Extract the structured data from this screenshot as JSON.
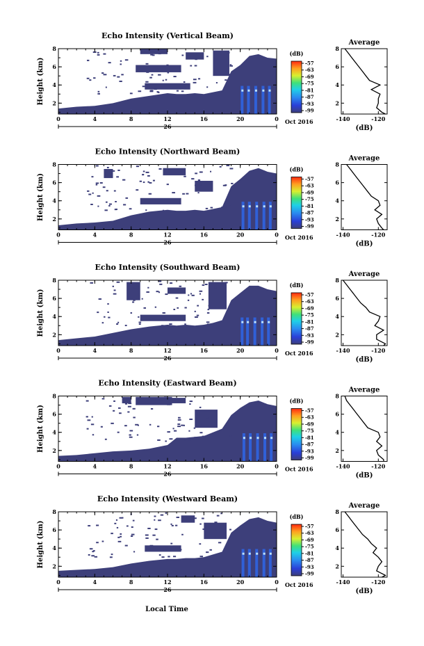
{
  "figure": {
    "xlabel": "Local Time",
    "colors": {
      "echo": "#3d3f7a",
      "echo_strong": "#2e66e8",
      "echo_peak": "#bde2ff",
      "average_line": "#000000"
    }
  },
  "chart_data": [
    {
      "type": "heatmap",
      "title": "Echo Intensity (Vertical Beam)",
      "ylabel": "Height (km)",
      "x_ticks": [
        "0",
        "4",
        "8",
        "12",
        "16",
        "20",
        "0"
      ],
      "y_ticks": [
        "2",
        "4",
        "6",
        "8"
      ],
      "date_day": "26",
      "date_suffix": "Oct 2016",
      "xlim": [
        0,
        24
      ],
      "ylim": [
        0.8,
        8
      ],
      "colorbar": {
        "unit": "(dB)",
        "ticks": [
          "-57",
          "-63",
          "-69",
          "-75",
          "-81",
          "-87",
          "-93",
          "-99"
        ]
      },
      "boundary": {
        "x": [
          0,
          2,
          4,
          6,
          8,
          10,
          12,
          13,
          14,
          15,
          16,
          17,
          18,
          19,
          20,
          21,
          22,
          23,
          24
        ],
        "top": [
          1.4,
          1.6,
          1.7,
          2.0,
          2.5,
          2.8,
          3.1,
          3.0,
          3.0,
          3.1,
          3.0,
          3.2,
          3.4,
          5.5,
          6.2,
          7.2,
          7.4,
          7.0,
          6.9
        ]
      },
      "patches": [
        {
          "x": [
            9.5,
            14.5
          ],
          "y": [
            3.5,
            4.2
          ]
        },
        {
          "x": [
            8.5,
            13.5
          ],
          "y": [
            5.4,
            6.2
          ]
        },
        {
          "x": [
            9.0,
            12.0
          ],
          "y": [
            7.4,
            8.0
          ]
        },
        {
          "x": [
            14.0,
            16.0
          ],
          "y": [
            6.8,
            7.6
          ]
        },
        {
          "x": [
            17.0,
            18.8
          ],
          "y": [
            5.0,
            7.8
          ]
        }
      ],
      "strong_columns": [
        20.2,
        20.9,
        21.7,
        22.5,
        23.2
      ],
      "average": {
        "title": "Average",
        "xlabel": "(dB)",
        "x_ticks": [
          "-140",
          "-120"
        ],
        "xlim": [
          -141,
          -115
        ],
        "y_ticks": [
          "2",
          "4",
          "6",
          "8"
        ],
        "ylim": [
          0.8,
          8
        ],
        "height_km": [
          0.8,
          1.0,
          1.5,
          2.0,
          2.5,
          3.0,
          3.5,
          4.0,
          4.5,
          5.0,
          5.5,
          6.0,
          6.5,
          7.0,
          7.5,
          8.0
        ],
        "intensity_db": [
          -116,
          -118,
          -121,
          -120,
          -120,
          -119,
          -124,
          -119,
          -125,
          -127,
          -129,
          -131,
          -133,
          -135,
          -137,
          -139
        ]
      }
    },
    {
      "type": "heatmap",
      "title": "Echo Intensity (Northward Beam)",
      "ylabel": "Height (km)",
      "x_ticks": [
        "0",
        "4",
        "8",
        "12",
        "16",
        "20",
        "0"
      ],
      "y_ticks": [
        "2",
        "4",
        "6",
        "8"
      ],
      "date_day": "26",
      "date_suffix": "Oct 2016",
      "xlim": [
        0,
        24
      ],
      "ylim": [
        0.8,
        8
      ],
      "colorbar": {
        "unit": "(dB)",
        "ticks": [
          "-57",
          "-63",
          "-69",
          "-75",
          "-81",
          "-87",
          "-93",
          "-99"
        ]
      },
      "boundary": {
        "x": [
          0,
          2,
          4,
          6,
          8,
          10,
          12,
          13,
          14,
          15,
          16,
          17,
          18,
          19,
          20,
          21,
          22,
          23,
          24
        ],
        "top": [
          1.3,
          1.5,
          1.6,
          1.8,
          2.4,
          2.8,
          3.0,
          2.9,
          2.9,
          3.0,
          2.9,
          3.1,
          3.3,
          5.6,
          6.4,
          7.3,
          7.6,
          7.2,
          7.0
        ]
      },
      "patches": [
        {
          "x": [
            9.0,
            13.5
          ],
          "y": [
            3.6,
            4.3
          ]
        },
        {
          "x": [
            11.5,
            14.0
          ],
          "y": [
            6.8,
            7.6
          ]
        },
        {
          "x": [
            15.0,
            17.0
          ],
          "y": [
            5.0,
            6.2
          ]
        },
        {
          "x": [
            5.0,
            6.0
          ],
          "y": [
            6.5,
            7.5
          ]
        }
      ],
      "strong_columns": [
        20.3,
        21.0,
        21.8,
        22.6,
        23.3
      ],
      "average": {
        "title": "Average",
        "xlabel": "(dB)",
        "x_ticks": [
          "-140",
          "-120"
        ],
        "xlim": [
          -141,
          -115
        ],
        "y_ticks": [
          "2",
          "4",
          "6",
          "8"
        ],
        "ylim": [
          0.8,
          8
        ],
        "height_km": [
          0.8,
          1.0,
          1.5,
          2.0,
          2.5,
          3.0,
          3.5,
          4.0,
          4.5,
          5.0,
          5.5,
          6.0,
          6.5,
          7.0,
          7.5,
          8.0
        ],
        "intensity_db": [
          -117,
          -118,
          -120,
          -121,
          -118,
          -122,
          -119,
          -120,
          -124,
          -126,
          -128,
          -130,
          -132,
          -134,
          -136,
          -138
        ]
      }
    },
    {
      "type": "heatmap",
      "title": "Echo Intensity (Southward Beam)",
      "ylabel": "Height (km)",
      "x_ticks": [
        "0",
        "4",
        "8",
        "12",
        "16",
        "20",
        "0"
      ],
      "y_ticks": [
        "2",
        "4",
        "6",
        "8"
      ],
      "date_day": "26",
      "date_suffix": "Oct 2016",
      "xlim": [
        0,
        24
      ],
      "ylim": [
        0.8,
        8
      ],
      "colorbar": {
        "unit": "(dB)",
        "ticks": [
          "-57",
          "-63",
          "-69",
          "-75",
          "-81",
          "-87",
          "-93",
          "-99"
        ]
      },
      "boundary": {
        "x": [
          0,
          2,
          4,
          6,
          8,
          10,
          12,
          13,
          14,
          15,
          16,
          17,
          18,
          19,
          20,
          21,
          22,
          23,
          24
        ],
        "top": [
          1.4,
          1.6,
          1.8,
          2.2,
          2.6,
          2.9,
          3.1,
          3.0,
          3.1,
          3.0,
          3.1,
          3.3,
          3.6,
          5.8,
          6.6,
          7.4,
          7.4,
          7.0,
          6.8
        ]
      },
      "patches": [
        {
          "x": [
            9.0,
            14.0
          ],
          "y": [
            3.5,
            4.2
          ]
        },
        {
          "x": [
            7.5,
            9.0
          ],
          "y": [
            5.8,
            7.8
          ]
        },
        {
          "x": [
            12.0,
            14.0
          ],
          "y": [
            6.5,
            7.2
          ]
        },
        {
          "x": [
            16.5,
            18.5
          ],
          "y": [
            4.8,
            7.8
          ]
        }
      ],
      "strong_columns": [
        20.2,
        20.8,
        21.6,
        22.4,
        23.1
      ],
      "average": {
        "title": "Average",
        "xlabel": "(dB)",
        "x_ticks": [
          "-140",
          "-120"
        ],
        "xlim": [
          -141,
          -115
        ],
        "y_ticks": [
          "2",
          "4",
          "6",
          "8"
        ],
        "ylim": [
          0.8,
          8
        ],
        "height_km": [
          0.8,
          1.0,
          1.5,
          2.0,
          2.5,
          3.0,
          3.5,
          4.0,
          4.5,
          5.0,
          5.5,
          6.0,
          6.5,
          7.0,
          7.5,
          8.0
        ],
        "intensity_db": [
          -117,
          -116,
          -121,
          -121,
          -117,
          -122,
          -120,
          -119,
          -125,
          -127,
          -130,
          -132,
          -134,
          -136,
          -138,
          -140
        ]
      }
    },
    {
      "type": "heatmap",
      "title": "Echo Intensity (Eastward Beam)",
      "ylabel": "Height (km)",
      "x_ticks": [
        "0",
        "4",
        "8",
        "12",
        "16",
        "20",
        "0"
      ],
      "y_ticks": [
        "2",
        "4",
        "6",
        "8"
      ],
      "date_day": "26",
      "date_suffix": "Oct 2016",
      "xlim": [
        0,
        24
      ],
      "ylim": [
        0.8,
        8
      ],
      "colorbar": {
        "unit": "(dB)",
        "ticks": [
          "-57",
          "-63",
          "-69",
          "-75",
          "-81",
          "-87",
          "-93",
          "-99"
        ]
      },
      "boundary": {
        "x": [
          0,
          2,
          4,
          6,
          8,
          10,
          12,
          13,
          14,
          15,
          16,
          17,
          18,
          19,
          20,
          21,
          22,
          23,
          24
        ],
        "top": [
          1.4,
          1.5,
          1.7,
          1.9,
          2.0,
          2.2,
          2.6,
          3.4,
          3.4,
          3.5,
          3.6,
          4.0,
          4.4,
          5.9,
          6.7,
          7.3,
          7.5,
          7.1,
          6.9
        ]
      },
      "patches": [
        {
          "x": [
            8.5,
            12.5
          ],
          "y": [
            7.0,
            7.9
          ]
        },
        {
          "x": [
            15.0,
            17.5
          ],
          "y": [
            4.5,
            6.5
          ]
        },
        {
          "x": [
            12.0,
            14.0
          ],
          "y": [
            7.2,
            7.8
          ]
        },
        {
          "x": [
            7.0,
            8.0
          ],
          "y": [
            7.2,
            7.9
          ]
        }
      ],
      "strong_columns": [
        20.4,
        21.1,
        21.9,
        22.7,
        23.4
      ],
      "average": {
        "title": "Average",
        "xlabel": "(dB)",
        "x_ticks": [
          "-140",
          "-120"
        ],
        "xlim": [
          -141,
          -115
        ],
        "y_ticks": [
          "2",
          "4",
          "6",
          "8"
        ],
        "ylim": [
          0.8,
          8
        ],
        "height_km": [
          0.8,
          1.0,
          1.5,
          2.0,
          2.5,
          3.0,
          3.5,
          4.0,
          4.5,
          5.0,
          5.5,
          6.0,
          6.5,
          7.0,
          7.5,
          8.0
        ],
        "intensity_db": [
          -117,
          -117,
          -120,
          -121,
          -118,
          -121,
          -119,
          -120,
          -126,
          -128,
          -130,
          -132,
          -134,
          -136,
          -138,
          -139
        ]
      }
    },
    {
      "type": "heatmap",
      "title": "Echo Intensity (Westward Beam)",
      "ylabel": "Height (km)",
      "x_ticks": [
        "0",
        "4",
        "8",
        "12",
        "16",
        "20",
        "0"
      ],
      "y_ticks": [
        "2",
        "4",
        "6",
        "8"
      ],
      "date_day": "26",
      "date_suffix": "Oct 2016",
      "xlim": [
        0,
        24
      ],
      "ylim": [
        0.8,
        8
      ],
      "colorbar": {
        "unit": "(dB)",
        "ticks": [
          "-57",
          "-63",
          "-69",
          "-75",
          "-81",
          "-87",
          "-93",
          "-99"
        ]
      },
      "boundary": {
        "x": [
          0,
          2,
          4,
          6,
          8,
          10,
          12,
          13,
          14,
          15,
          16,
          17,
          18,
          19,
          20,
          21,
          22,
          23,
          24
        ],
        "top": [
          1.5,
          1.6,
          1.7,
          1.9,
          2.3,
          2.6,
          2.8,
          2.8,
          2.9,
          2.9,
          3.0,
          3.3,
          3.6,
          5.7,
          6.5,
          7.2,
          7.4,
          7.0,
          6.8
        ]
      },
      "patches": [
        {
          "x": [
            9.5,
            13.5
          ],
          "y": [
            3.6,
            4.3
          ]
        },
        {
          "x": [
            16.0,
            18.5
          ],
          "y": [
            5.0,
            6.8
          ]
        },
        {
          "x": [
            13.5,
            15.0
          ],
          "y": [
            6.8,
            7.6
          ]
        }
      ],
      "strong_columns": [
        20.3,
        21.0,
        21.8,
        22.6,
        23.3
      ],
      "average": {
        "title": "Average",
        "xlabel": "(dB)",
        "x_ticks": [
          "-140",
          "-120"
        ],
        "xlim": [
          -141,
          -115
        ],
        "y_ticks": [
          "2",
          "4",
          "6",
          "8"
        ],
        "ylim": [
          0.8,
          8
        ],
        "height_km": [
          0.8,
          1.0,
          1.5,
          2.0,
          2.5,
          3.0,
          3.5,
          4.0,
          4.5,
          5.0,
          5.5,
          6.0,
          6.5,
          7.0,
          7.5,
          8.0
        ],
        "intensity_db": [
          -118,
          -116,
          -121,
          -120,
          -118,
          -120,
          -123,
          -121,
          -124,
          -126,
          -129,
          -131,
          -133,
          -135,
          -137,
          -139
        ]
      }
    }
  ]
}
